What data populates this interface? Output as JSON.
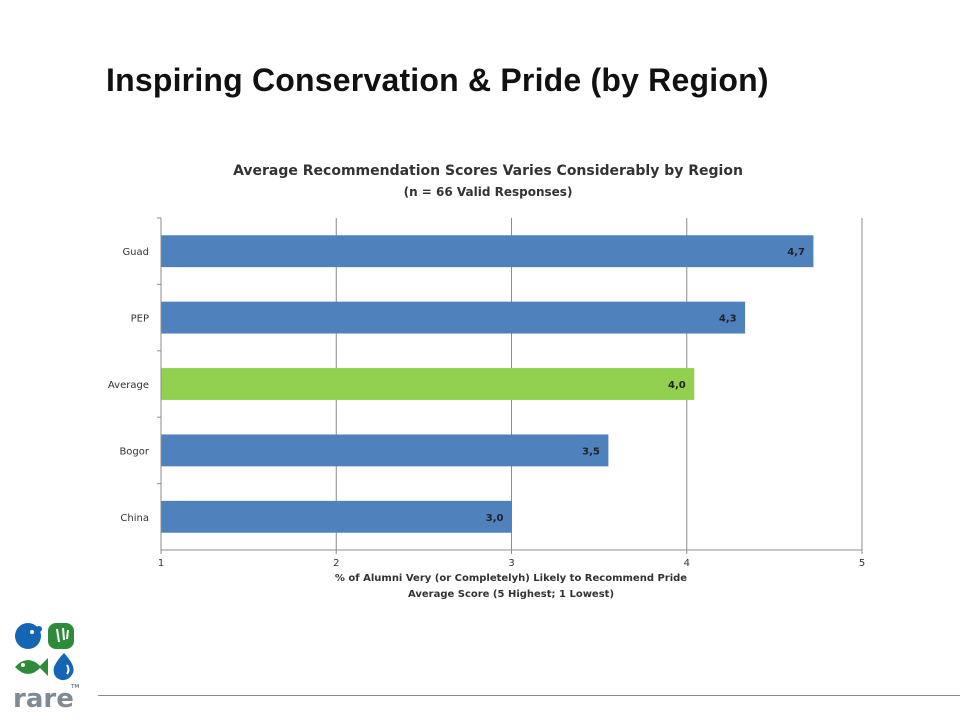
{
  "slide": {
    "title": "Inspiring Conservation & Pride (by Region)"
  },
  "logo": {
    "text": "rare",
    "tm": "TM",
    "colors": {
      "blue": "#1565b5",
      "green": "#2e8b3a",
      "gray": "#7f8a94"
    }
  },
  "chart_data": {
    "type": "bar",
    "orientation": "horizontal",
    "title": "Average Recommendation Scores Varies Considerably by Region",
    "subtitle": "(n = 66 Valid Responses)",
    "categories": [
      "Guad",
      "PEP",
      "Average",
      "Bogor",
      "China"
    ],
    "values": [
      4.72,
      4.33,
      4.04,
      3.55,
      3.0
    ],
    "data_labels": [
      "4,7",
      "4,3",
      "4,0",
      "3,5",
      "3,0"
    ],
    "bar_colors": [
      "#4f81bd",
      "#4f81bd",
      "#92d050",
      "#4f81bd",
      "#4f81bd"
    ],
    "xlim": [
      1,
      5
    ],
    "xticks": [
      "1",
      "2",
      "3",
      "4",
      "5"
    ],
    "xlabel_line1": "% of Alumni Very (or Completelyh) Likely to Recommend Pride",
    "xlabel_line2": "Average Score (5 Highest; 1 Lowest)",
    "grid": true,
    "legend": "none"
  }
}
